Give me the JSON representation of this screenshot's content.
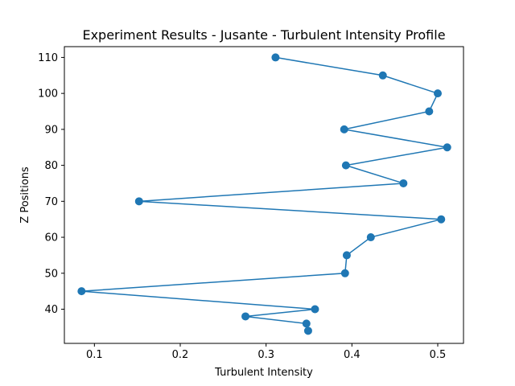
{
  "chart_data": {
    "type": "line",
    "title": "Experiment Results - Jusante - Turbulent Intensity Profile",
    "xlabel": "Turbulent Intensity",
    "ylabel": "Z Positions",
    "xlim": [
      0.065,
      0.53
    ],
    "ylim": [
      30.5,
      113
    ],
    "xticks": [
      0.1,
      0.2,
      0.3,
      0.4,
      0.5
    ],
    "xtick_labels": [
      "0.1",
      "0.2",
      "0.3",
      "0.4",
      "0.5"
    ],
    "yticks": [
      40,
      50,
      60,
      70,
      80,
      90,
      100,
      110
    ],
    "ytick_labels": [
      "40",
      "50",
      "60",
      "70",
      "80",
      "90",
      "100",
      "110"
    ],
    "grid": false,
    "series": [
      {
        "color": "#1f77b4",
        "marker": "circle",
        "x": [
          0.349,
          0.347,
          0.276,
          0.357,
          0.085,
          0.392,
          0.394,
          0.422,
          0.504,
          0.152,
          0.46,
          0.393,
          0.511,
          0.391,
          0.49,
          0.5,
          0.436,
          0.311
        ],
        "y": [
          34,
          36,
          38,
          40,
          45,
          50,
          55,
          60,
          65,
          70,
          75,
          80,
          85,
          90,
          95,
          100,
          105,
          110
        ]
      }
    ]
  }
}
